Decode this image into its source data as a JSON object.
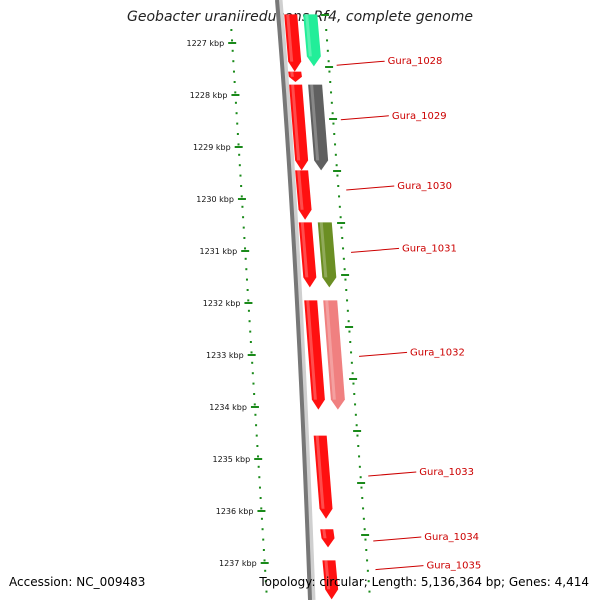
{
  "header": {
    "title": "Geobacter uraniireducens Rf4, complete genome"
  },
  "footer": {
    "accession": "Accession: NC_009483",
    "topology": "Topology: circular; Length: 5,136,364 bp; Genes: 4,414"
  },
  "map": {
    "kbp_ticks": [
      {
        "kb": 1227,
        "label": "1227 kbp"
      },
      {
        "kb": 1228,
        "label": "1228 kbp"
      },
      {
        "kb": 1229,
        "label": "1229 kbp"
      },
      {
        "kb": 1230,
        "label": "1230 kbp"
      },
      {
        "kb": 1231,
        "label": "1231 kbp"
      },
      {
        "kb": 1232,
        "label": "1232 kbp"
      },
      {
        "kb": 1233,
        "label": "1233 kbp"
      },
      {
        "kb": 1234,
        "label": "1234 kbp"
      },
      {
        "kb": 1235,
        "label": "1235 kbp"
      },
      {
        "kb": 1236,
        "label": "1236 kbp"
      },
      {
        "kb": 1237,
        "label": "1237 kbp"
      }
    ],
    "gene_labels": [
      {
        "name": "Gura_1028",
        "kb": 1227.35
      },
      {
        "name": "Gura_1029",
        "kb": 1228.4
      },
      {
        "name": "Gura_1030",
        "kb": 1229.75
      },
      {
        "name": "Gura_1031",
        "kb": 1230.95
      },
      {
        "name": "Gura_1032",
        "kb": 1232.95
      },
      {
        "name": "Gura_1033",
        "kb": 1235.25
      },
      {
        "name": "Gura_1034",
        "kb": 1236.5
      },
      {
        "name": "Gura_1035",
        "kb": 1237.05
      }
    ],
    "orfs": [
      {
        "start": 1226.45,
        "end": 1227.55,
        "color": "#ff1010"
      },
      {
        "start": 1227.55,
        "end": 1227.75,
        "color": "#ff1010"
      },
      {
        "start": 1227.8,
        "end": 1229.45,
        "color": "#ff1010"
      },
      {
        "start": 1229.45,
        "end": 1230.4,
        "color": "#ff1010"
      },
      {
        "start": 1230.45,
        "end": 1231.7,
        "color": "#ff1010"
      },
      {
        "start": 1231.95,
        "end": 1234.05,
        "color": "#ff1010"
      },
      {
        "start": 1234.55,
        "end": 1236.15,
        "color": "#ff1010"
      },
      {
        "start": 1236.35,
        "end": 1236.7,
        "color": "#ff1010"
      },
      {
        "start": 1236.95,
        "end": 1237.7,
        "color": "#ff1010"
      }
    ],
    "cogs": [
      {
        "start": 1226.45,
        "end": 1227.45,
        "color": "#22ee99"
      },
      {
        "start": 1227.8,
        "end": 1229.45,
        "color": "#606060"
      },
      {
        "start": 1230.45,
        "end": 1231.7,
        "color": "#6b8e23"
      },
      {
        "start": 1231.95,
        "end": 1234.05,
        "color": "#f08080"
      }
    ]
  }
}
